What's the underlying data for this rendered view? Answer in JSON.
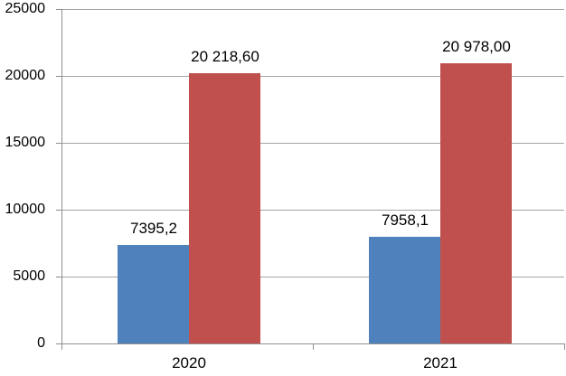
{
  "chart_data": {
    "type": "bar",
    "title": "",
    "categories": [
      "2020",
      "2021"
    ],
    "series": [
      {
        "name": "series-1-blue",
        "color": "#4f81bd",
        "values": [
          7395.2,
          7958.1
        ],
        "data_labels": [
          "7395,2",
          "7958,1"
        ]
      },
      {
        "name": "series-2-red",
        "color": "#c0504d",
        "values": [
          20218.6,
          20978.0
        ],
        "data_labels": [
          "20 218,60",
          "20 978,00"
        ]
      }
    ],
    "y_axis": {
      "min": 0,
      "max": 25000,
      "tick_interval": 5000,
      "tick_labels": [
        "0",
        "5000",
        "10000",
        "15000",
        "20000",
        "25000"
      ]
    },
    "x_axis": {
      "tick_labels": [
        "2020",
        "2021"
      ]
    },
    "grid": true,
    "legend": "none",
    "colors": {
      "series1": "#4f81bd",
      "series2": "#c0504d",
      "gridline": "#a3a3a3",
      "axis": "#8f8f8f",
      "text": "#000000",
      "background": "#ffffff"
    }
  }
}
